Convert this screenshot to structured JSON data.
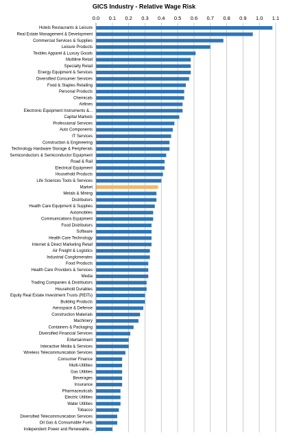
{
  "chart_data": {
    "type": "hbar",
    "title": "GICS Industry - Relative Wage Risk",
    "categories": [
      "Hotels Restaurants & Leisure",
      "Real Estate Management & Development",
      "Commercial Services & Supplies",
      "Leisure Products",
      "Textiles Apparel & Luxury Goods",
      "Multiline Retail",
      "Specialty Retail",
      "Energy Equipment & Services",
      "Diversified Consumer Services",
      "Food & Staples Retailing",
      "Personal Products",
      "Chemicals",
      "Airlines",
      "Electronic Equipment Instruments &...",
      "Capital Markets",
      "Professional Services",
      "Auto Components",
      "IT Services",
      "Construction & Engineering",
      "Technology Hardware Storage & Peripherals",
      "Semiconductors & Semiconductor Equipment",
      "Road & Rail",
      "Electrical Equipment",
      "Household Products",
      "Life Sciences Tools & Services",
      "Market",
      "Metals & Mining",
      "Distributors",
      "Health Care Equipment & Supplies",
      "Automobiles",
      "Communications Equipment",
      "Food Distributors",
      "Software",
      "Health Care Technology",
      "Internet & Direct Marketing Retail",
      "Air Freight & Logistics",
      "Industrial Conglomerates",
      "Food Products",
      "Health Care Providers & Services",
      "Media",
      "Trading Companies & Distributors",
      "Household Durables",
      "Equity Real Estate Investment Trusts (REITs)",
      "Building Products",
      "Aerospace & Defense",
      "Construction Materials",
      "Machinery",
      "Containers & Packaging",
      "Diversified Financial Services",
      "Entertainment",
      "Interactive Media & Services",
      "Wireless Telecommunication Services",
      "Consumer Finance",
      "Multi-Utilities",
      "Gas Utilities",
      "Beverages",
      "Insurance",
      "Pharmaceuticals",
      "Electric Utilities",
      "Water Utilities",
      "Tobacco",
      "Diversified Telecommunication Services",
      "Oil Gas & Consumable Fuels",
      "Independent Power and Renewable..."
    ],
    "values": [
      1.08,
      0.96,
      0.78,
      0.7,
      0.61,
      0.58,
      0.58,
      0.58,
      0.57,
      0.55,
      0.54,
      0.54,
      0.53,
      0.53,
      0.51,
      0.48,
      0.47,
      0.46,
      0.45,
      0.45,
      0.43,
      0.42,
      0.42,
      0.41,
      0.4,
      0.38,
      0.37,
      0.37,
      0.36,
      0.35,
      0.35,
      0.34,
      0.34,
      0.34,
      0.34,
      0.33,
      0.33,
      0.32,
      0.32,
      0.32,
      0.31,
      0.31,
      0.3,
      0.3,
      0.29,
      0.27,
      0.26,
      0.23,
      0.21,
      0.2,
      0.2,
      0.18,
      0.16,
      0.16,
      0.16,
      0.16,
      0.16,
      0.15,
      0.15,
      0.15,
      0.14,
      0.13,
      0.13,
      0.1
    ],
    "colors": [
      "#2e75b6",
      "#2e75b6",
      "#2e75b6",
      "#2e75b6",
      "#2e75b6",
      "#2e75b6",
      "#2e75b6",
      "#2e75b6",
      "#2e75b6",
      "#2e75b6",
      "#2e75b6",
      "#2e75b6",
      "#2e75b6",
      "#2e75b6",
      "#2e75b6",
      "#2e75b6",
      "#2e75b6",
      "#2e75b6",
      "#2e75b6",
      "#2e75b6",
      "#2e75b6",
      "#2e75b6",
      "#2e75b6",
      "#2e75b6",
      "#2e75b6",
      "#f2b866",
      "#2e75b6",
      "#2e75b6",
      "#2e75b6",
      "#2e75b6",
      "#2e75b6",
      "#2e75b6",
      "#2e75b6",
      "#2e75b6",
      "#2e75b6",
      "#2e75b6",
      "#2e75b6",
      "#2e75b6",
      "#2e75b6",
      "#2e75b6",
      "#2e75b6",
      "#2e75b6",
      "#2e75b6",
      "#2e75b6",
      "#2e75b6",
      "#2e75b6",
      "#2e75b6",
      "#2e75b6",
      "#2e75b6",
      "#2e75b6",
      "#2e75b6",
      "#2e75b6",
      "#2e75b6",
      "#2e75b6",
      "#2e75b6",
      "#2e75b6",
      "#2e75b6",
      "#2e75b6",
      "#2e75b6",
      "#2e75b6",
      "#2e75b6",
      "#2e75b6",
      "#2e75b6",
      "#2e75b6"
    ],
    "xlim": [
      0,
      1.1
    ],
    "xticks": [
      {
        "value": 0,
        "label": "0.0"
      },
      0.1,
      0.2,
      0.3,
      0.4,
      0.5,
      0.6,
      0.7,
      0.8,
      0.9,
      {
        "value": 1,
        "label": "1.0"
      },
      1.1
    ],
    "grid": true
  }
}
